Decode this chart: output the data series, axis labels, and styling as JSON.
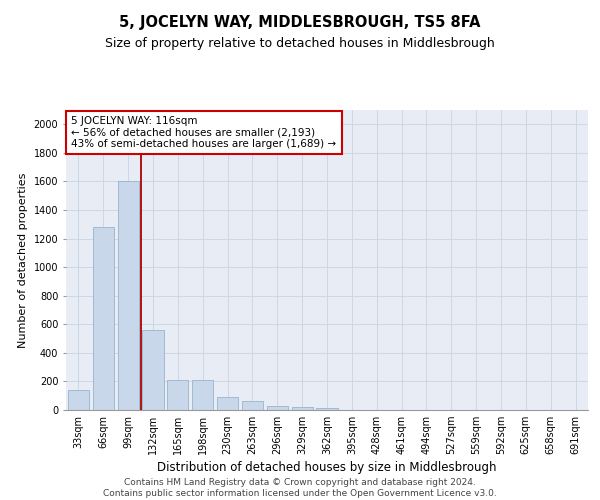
{
  "title": "5, JOCELYN WAY, MIDDLESBROUGH, TS5 8FA",
  "subtitle": "Size of property relative to detached houses in Middlesbrough",
  "xlabel": "Distribution of detached houses by size in Middlesbrough",
  "ylabel": "Number of detached properties",
  "categories": [
    "33sqm",
    "66sqm",
    "99sqm",
    "132sqm",
    "165sqm",
    "198sqm",
    "230sqm",
    "263sqm",
    "296sqm",
    "329sqm",
    "362sqm",
    "395sqm",
    "428sqm",
    "461sqm",
    "494sqm",
    "527sqm",
    "559sqm",
    "592sqm",
    "625sqm",
    "658sqm",
    "691sqm"
  ],
  "values": [
    140,
    1280,
    1600,
    560,
    210,
    210,
    90,
    60,
    25,
    20,
    15,
    0,
    0,
    0,
    0,
    0,
    0,
    0,
    0,
    0,
    0
  ],
  "bar_color": "#c8d8ea",
  "bar_edge_color": "#9ab4cc",
  "vline_x": 2.5,
  "vline_color": "#aa0000",
  "annotation_text": "5 JOCELYN WAY: 116sqm\n← 56% of detached houses are smaller (2,193)\n43% of semi-detached houses are larger (1,689) →",
  "annotation_box_color": "#ffffff",
  "annotation_box_edge": "#cc0000",
  "ylim": [
    0,
    2100
  ],
  "yticks": [
    0,
    200,
    400,
    600,
    800,
    1000,
    1200,
    1400,
    1600,
    1800,
    2000
  ],
  "grid_color": "#c8d4e4",
  "bg_color": "#e8edf5",
  "footer_line1": "Contains HM Land Registry data © Crown copyright and database right 2024.",
  "footer_line2": "Contains public sector information licensed under the Open Government Licence v3.0.",
  "title_fontsize": 10.5,
  "subtitle_fontsize": 9,
  "xlabel_fontsize": 8.5,
  "ylabel_fontsize": 8,
  "tick_fontsize": 7,
  "footer_fontsize": 6.5,
  "annotation_fontsize": 7.5
}
